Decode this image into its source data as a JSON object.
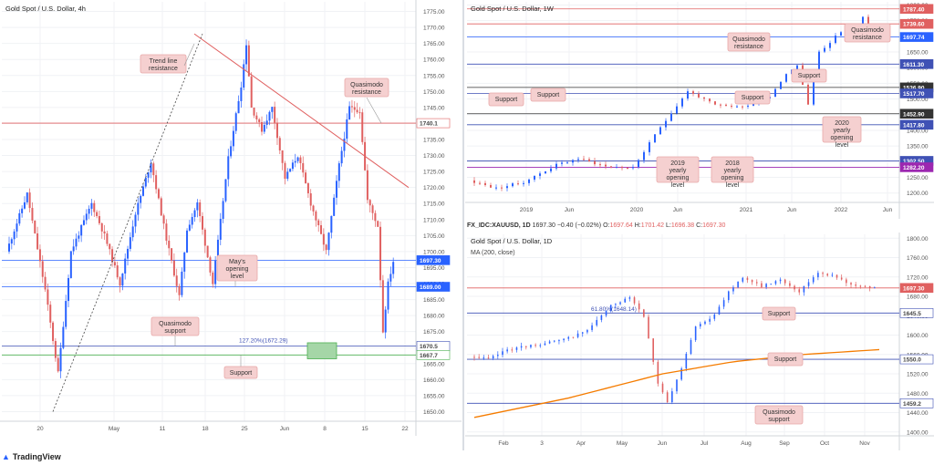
{
  "chart_data": [
    {
      "type": "candlestick",
      "title": "Gold Spot / U.S. Dollar, 4h",
      "timeframe": "4h",
      "x_ticks": [
        "20",
        "May",
        "11",
        "18",
        "25",
        "Jun",
        "8",
        "15",
        "22"
      ],
      "y_ticks": [
        1650,
        1655,
        1660,
        1665,
        1670,
        1675,
        1680,
        1685,
        1690,
        1695,
        1700,
        1705,
        1710,
        1715,
        1720,
        1725,
        1730,
        1735,
        1740,
        1745,
        1750,
        1755,
        1760,
        1765,
        1770,
        1775
      ],
      "ylim": [
        1647,
        1778
      ],
      "approx_path": [
        [
          0,
          1700
        ],
        [
          8,
          1718
        ],
        [
          15,
          1688
        ],
        [
          20,
          1662
        ],
        [
          25,
          1700
        ],
        [
          33,
          1715
        ],
        [
          38,
          1705
        ],
        [
          44,
          1690
        ],
        [
          50,
          1712
        ],
        [
          56,
          1728
        ],
        [
          62,
          1704
        ],
        [
          67,
          1686
        ],
        [
          70,
          1707
        ],
        [
          74,
          1715
        ],
        [
          80,
          1690
        ],
        [
          86,
          1729
        ],
        [
          91,
          1752
        ],
        [
          93,
          1765
        ],
        [
          95,
          1745
        ],
        [
          99,
          1738
        ],
        [
          103,
          1745
        ],
        [
          108,
          1723
        ],
        [
          113,
          1730
        ],
        [
          118,
          1715
        ],
        [
          124,
          1700
        ],
        [
          129,
          1727
        ],
        [
          133,
          1745
        ],
        [
          137,
          1744
        ],
        [
          140,
          1716
        ],
        [
          144,
          1708
        ],
        [
          146,
          1675
        ],
        [
          148,
          1690
        ],
        [
          150,
          1697
        ]
      ],
      "levels": [
        {
          "label": "1740.1",
          "value": 1740.1,
          "color": "#e06060",
          "text_color": "#444"
        },
        {
          "label": "1697.30",
          "value": 1697.3,
          "color": "#2962ff",
          "text_color": "#ffffff",
          "current": true
        },
        {
          "label": "1689.00",
          "value": 1689,
          "color": "#2962ff",
          "text_color": "#ffffff"
        },
        {
          "label": "1670.5",
          "value": 1670.5,
          "color": "#3f51b5",
          "text_color": "#444"
        },
        {
          "label": "1667.7",
          "value": 1667.7,
          "color": "#4caf50",
          "text_color": "#444"
        }
      ],
      "fib_label": "127.20%(1672.29)",
      "annotations": [
        "Trend line resistance",
        "Quasimodo resistance",
        "May's opening level",
        "Quasimodo support",
        "Support"
      ]
    },
    {
      "type": "candlestick",
      "title": "Gold Spot / U.S. Dollar, 1W",
      "timeframe": "1W",
      "x_ticks": [
        "2019",
        "Jun",
        "2020",
        "Jun",
        "2021",
        "Jun",
        "2022",
        "Jun"
      ],
      "y_ticks": [
        1200,
        1250,
        1300,
        1350,
        1400,
        1450,
        1500,
        1550,
        1600,
        1650,
        1700,
        1750,
        1800
      ],
      "ylim": [
        1170,
        1810
      ],
      "approx_path": [
        [
          0,
          1240
        ],
        [
          5,
          1215
        ],
        [
          10,
          1235
        ],
        [
          16,
          1290
        ],
        [
          20,
          1310
        ],
        [
          25,
          1285
        ],
        [
          30,
          1280
        ],
        [
          35,
          1410
        ],
        [
          40,
          1525
        ],
        [
          45,
          1480
        ],
        [
          50,
          1475
        ],
        [
          55,
          1510
        ],
        [
          58,
          1580
        ],
        [
          60,
          1610
        ],
        [
          62,
          1480
        ],
        [
          64,
          1650
        ],
        [
          68,
          1715
        ],
        [
          70,
          1700
        ],
        [
          72,
          1760
        ],
        [
          74,
          1697
        ]
      ],
      "levels": [
        {
          "label": "1787.40",
          "value": 1787.4,
          "color": "#e06060",
          "text_color": "#ffffff"
        },
        {
          "label": "1739.60",
          "value": 1739.6,
          "color": "#e06060",
          "text_color": "#ffffff"
        },
        {
          "label": "1697.74",
          "value": 1697.74,
          "color": "#2962ff",
          "text_color": "#ffffff",
          "current": true
        },
        {
          "label": "1611.30",
          "value": 1611.3,
          "color": "#3f51b5",
          "text_color": "#ffffff"
        },
        {
          "label": "1536.90",
          "value": 1536.9,
          "color": "#333",
          "text_color": "#ffffff"
        },
        {
          "label": "1517.70",
          "value": 1517.7,
          "color": "#3f51b5",
          "text_color": "#ffffff"
        },
        {
          "label": "1452.90",
          "value": 1452.9,
          "color": "#333",
          "text_color": "#ffffff"
        },
        {
          "label": "1417.80",
          "value": 1417.8,
          "color": "#3f51b5",
          "text_color": "#ffffff"
        },
        {
          "label": "1302.50",
          "value": 1302.5,
          "color": "#3f51b5",
          "text_color": "#ffffff"
        },
        {
          "label": "1282.20",
          "value": 1282.2,
          "color": "#9c27b0",
          "text_color": "#ffffff"
        }
      ],
      "annotations": [
        "Quasimodo resistance",
        "Quasimodo resistance",
        "Support",
        "Support",
        "Support",
        "Support",
        "2020 yearly opening level",
        "2019 yearly opening level",
        "2018 yearly opening level"
      ]
    },
    {
      "type": "candlestick",
      "title": "Gold Spot / U.S. Dollar, 1D",
      "timeframe": "1D",
      "indicator": "MA (200, close)",
      "x_ticks": [
        "Feb",
        "3",
        "Apr",
        "May",
        "Jun",
        "Jul",
        "Aug",
        "Sep",
        "Oct",
        "Nov"
      ],
      "y_ticks": [
        1400,
        1440,
        1480,
        1520,
        1560,
        1600,
        1640,
        1680,
        1720,
        1760,
        1800
      ],
      "ylim": [
        1392,
        1808
      ],
      "approx_path": [
        [
          0,
          1555
        ],
        [
          4,
          1550
        ],
        [
          8,
          1570
        ],
        [
          14,
          1580
        ],
        [
          20,
          1590
        ],
        [
          25,
          1610
        ],
        [
          30,
          1660
        ],
        [
          34,
          1680
        ],
        [
          37,
          1640
        ],
        [
          40,
          1500
        ],
        [
          42,
          1460
        ],
        [
          45,
          1530
        ],
        [
          48,
          1620
        ],
        [
          52,
          1640
        ],
        [
          55,
          1690
        ],
        [
          58,
          1720
        ],
        [
          62,
          1700
        ],
        [
          66,
          1715
        ],
        [
          70,
          1690
        ],
        [
          74,
          1730
        ],
        [
          78,
          1720
        ],
        [
          82,
          1700
        ],
        [
          86,
          1697
        ]
      ],
      "ma_path": [
        [
          0,
          1430
        ],
        [
          20,
          1470
        ],
        [
          40,
          1520
        ],
        [
          55,
          1545
        ],
        [
          70,
          1560
        ],
        [
          86,
          1570
        ]
      ],
      "levels": [
        {
          "label": "1697.30",
          "value": 1697.3,
          "color": "#e06060",
          "text_color": "#ffffff",
          "current": true
        },
        {
          "label": "1645.5",
          "value": 1645.5,
          "color": "#3f51b5",
          "text_color": "#444"
        },
        {
          "label": "1550.0",
          "value": 1550,
          "color": "#3f51b5",
          "text_color": "#444"
        },
        {
          "label": "1459.2",
          "value": 1459.2,
          "color": "#3f51b5",
          "text_color": "#444"
        }
      ],
      "fib_label": "61.80%(1648.14)",
      "annotations": [
        "Support",
        "Support",
        "Quasimodo support"
      ]
    }
  ],
  "symbol_info": {
    "symbol": "FX_IDC:XAUUSD, 1D",
    "price": "1697.30",
    "change": "−0.40 (−0.02%)",
    "o_label": "O:",
    "o": "1697.64",
    "h_label": "H:",
    "h": "1701.42",
    "l_label": "L:",
    "l": "1696.38",
    "c_label": "C:",
    "c": "1697.30"
  },
  "branding": "TradingView",
  "colors": {
    "up": "#2962ff",
    "down": "#e06060",
    "ma": "#f57c00",
    "annotation_bg": "#f5d0d0",
    "annotation_border": "#e8a8a8"
  }
}
